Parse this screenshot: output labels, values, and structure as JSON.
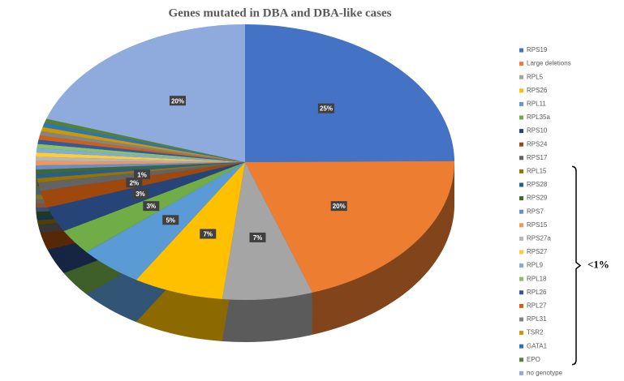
{
  "chart_data": {
    "type": "pie",
    "title": "Genes mutated in DBA and DBA-like cases",
    "categories": [
      "RPS19",
      "Large deletions",
      "RPL5",
      "RPS26",
      "RPL11",
      "RPL35a",
      "RPS10",
      "RPS24",
      "RPS17",
      "RPL15",
      "RPS28",
      "RPS29",
      "RPS7",
      "RPS15",
      "RPS27a",
      "RPS27",
      "RPL9",
      "RPL18",
      "RPL26",
      "RPL27",
      "RPL31",
      "TSR2",
      "GATA1",
      "EPO",
      "no genotype"
    ],
    "values": [
      25,
      20,
      7,
      7,
      5,
      3,
      3,
      2,
      1,
      0.5,
      0.5,
      0.5,
      0.5,
      0.5,
      0.5,
      0.5,
      0.5,
      0.5,
      0.5,
      0.5,
      0.5,
      0.5,
      0.5,
      0.5,
      20
    ],
    "value_labels": [
      "25%",
      "20%",
      "7%",
      "7%",
      "5%",
      "3%",
      "3%",
      "2%",
      "1%",
      null,
      null,
      null,
      null,
      null,
      null,
      null,
      null,
      null,
      null,
      null,
      null,
      null,
      null,
      null,
      "20%"
    ],
    "colors": [
      "#4472c4",
      "#ed7d31",
      "#a5a5a5",
      "#ffc000",
      "#5b9bd5",
      "#70ad47",
      "#264478",
      "#9e480e",
      "#636363",
      "#997300",
      "#255e91",
      "#43682b",
      "#698ed0",
      "#f1975a",
      "#b7b7b7",
      "#ffcd33",
      "#7cafdd",
      "#8cc168",
      "#335aa1",
      "#d26012",
      "#848484",
      "#cc9a00",
      "#2e75b6",
      "#548235",
      "#8faadc"
    ],
    "legend": "right",
    "annotation": "<1%"
  }
}
